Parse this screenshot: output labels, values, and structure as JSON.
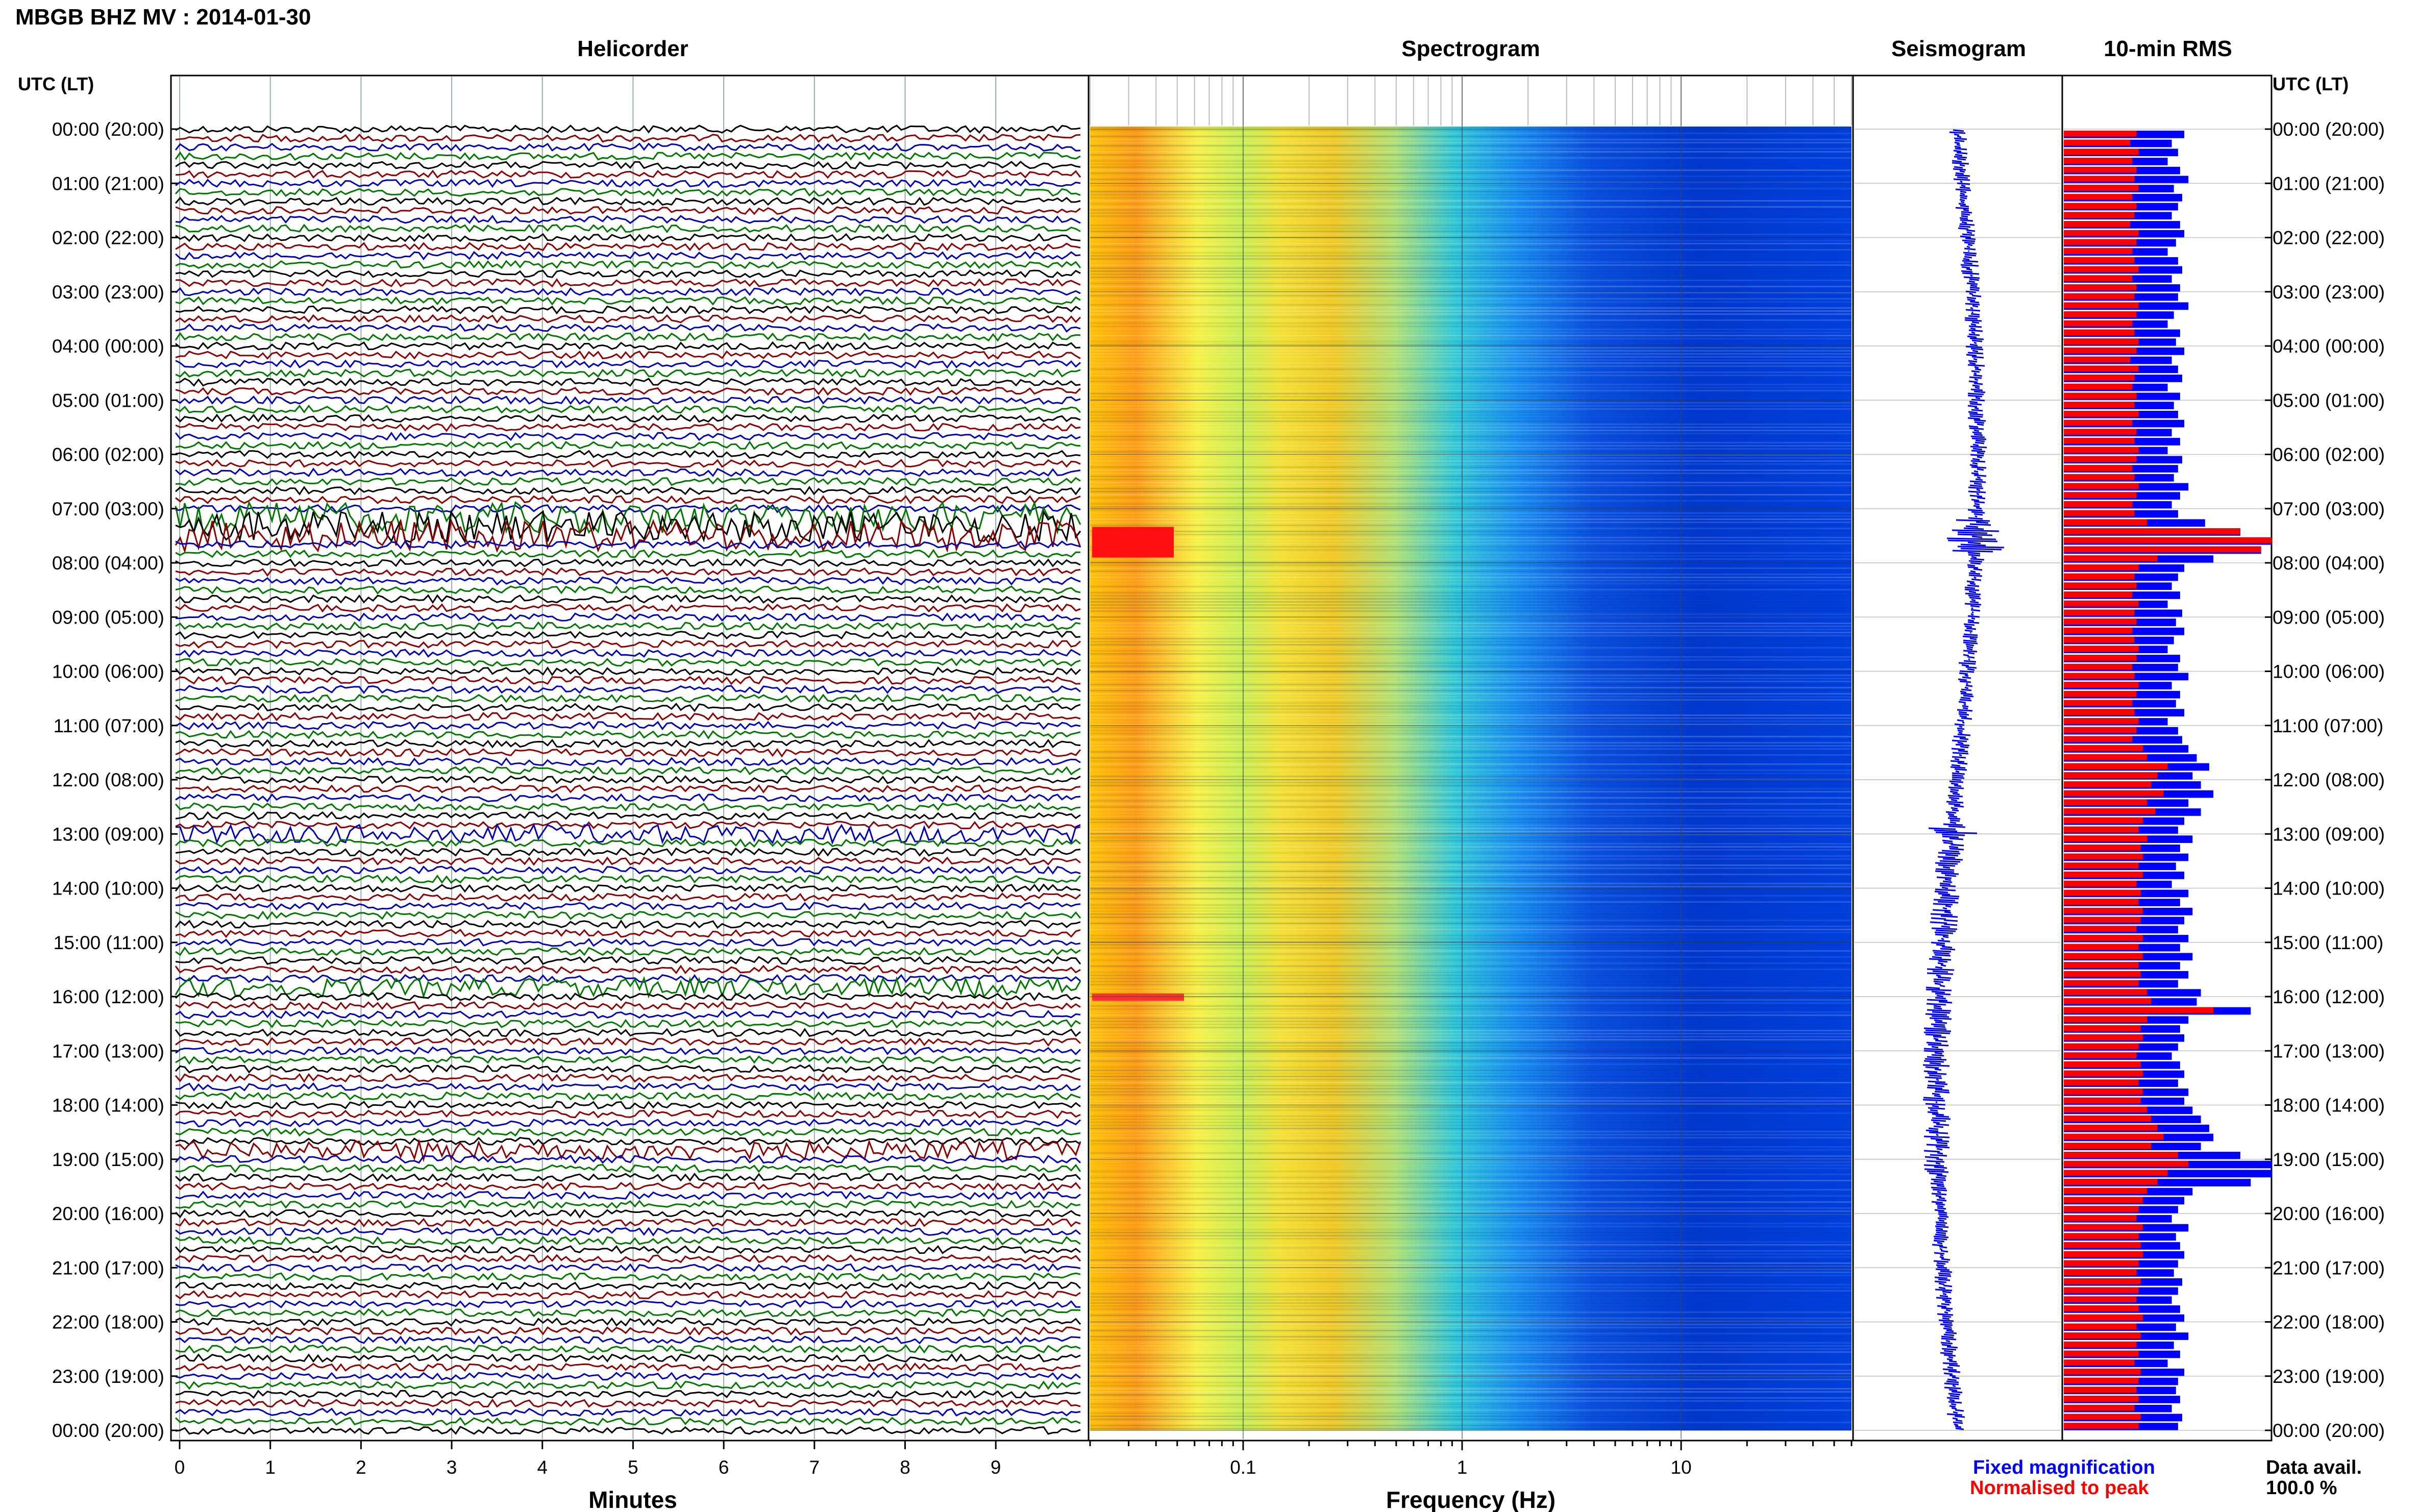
{
  "figure": {
    "station_title": "MBGB BHZ MV : 2014-01-30",
    "utc_lt_label": "UTC (LT)",
    "footer_fixed": "Fixed magnification",
    "footer_normalised": "Normalised to peak",
    "data_avail_label": "Data avail.",
    "data_avail_value": "100.0 %",
    "colors": {
      "trace_cycle": [
        "#000000",
        "#8b0000",
        "#0000b4",
        "#007800"
      ],
      "fixed": "#0000ff",
      "normalised": "#ff0000"
    }
  },
  "chart_data": [
    {
      "type": "line",
      "title": "Helicorder",
      "xlabel": "Minutes",
      "x_ticks": [
        "0",
        "1",
        "2",
        "3",
        "4",
        "5",
        "6",
        "7",
        "8",
        "9"
      ],
      "xlim": [
        0,
        10
      ],
      "y_ticks": [
        "00:00 (20:00)",
        "01:00 (21:00)",
        "02:00 (22:00)",
        "03:00 (23:00)",
        "04:00 (00:00)",
        "05:00 (01:00)",
        "06:00 (02:00)",
        "07:00 (03:00)",
        "08:00 (04:00)",
        "09:00 (05:00)",
        "10:00 (06:00)",
        "11:00 (07:00)",
        "12:00 (08:00)",
        "13:00 (09:00)",
        "14:00 (10:00)",
        "15:00 (11:00)",
        "16:00 (12:00)",
        "17:00 (13:00)",
        "18:00 (14:00)",
        "19:00 (15:00)",
        "20:00 (16:00)",
        "21:00 (17:00)",
        "22:00 (18:00)",
        "23:00 (19:00)",
        "00:00 (20:00)"
      ],
      "lines_per_hour": 6,
      "high_amplitude_hours": [
        7.3,
        7.5,
        13.0,
        15.8,
        18.9
      ]
    },
    {
      "type": "heatmap",
      "title": "Spectrogram",
      "xlabel": "Frequency (Hz)",
      "x_ticks": [
        "0.1",
        "1",
        "10"
      ],
      "xscale": "log",
      "xlim": [
        0.02,
        60
      ]
    },
    {
      "type": "line",
      "title": "Seismogram"
    },
    {
      "type": "bar",
      "title": "10-min RMS",
      "series": [
        {
          "name": "Fixed magnification",
          "values": [
            0.58,
            0.52,
            0.55,
            0.5,
            0.56,
            0.6,
            0.53,
            0.57,
            0.55,
            0.52,
            0.56,
            0.58,
            0.54,
            0.5,
            0.55,
            0.57,
            0.52,
            0.56,
            0.55,
            0.6,
            0.53,
            0.5,
            0.56,
            0.54,
            0.58,
            0.52,
            0.55,
            0.57,
            0.5,
            0.56,
            0.53,
            0.55,
            0.58,
            0.52,
            0.56,
            0.5,
            0.57,
            0.55,
            0.53,
            0.6,
            0.56,
            0.52,
            0.55,
            0.68,
            0.85,
            1.0,
            0.95,
            0.72,
            0.58,
            0.55,
            0.52,
            0.56,
            0.5,
            0.57,
            0.54,
            0.58,
            0.53,
            0.5,
            0.56,
            0.55,
            0.6,
            0.52,
            0.56,
            0.54,
            0.58,
            0.5,
            0.55,
            0.57,
            0.6,
            0.64,
            0.7,
            0.62,
            0.66,
            0.72,
            0.6,
            0.66,
            0.58,
            0.55,
            0.62,
            0.56,
            0.6,
            0.54,
            0.58,
            0.52,
            0.6,
            0.56,
            0.62,
            0.58,
            0.55,
            0.6,
            0.56,
            0.62,
            0.56,
            0.6,
            0.55,
            0.66,
            0.64,
            0.9,
            0.6,
            0.56,
            0.58,
            0.55,
            0.52,
            0.56,
            0.58,
            0.55,
            0.6,
            0.58,
            0.62,
            0.66,
            0.7,
            0.72,
            0.66,
            0.85,
            1.0,
            1.0,
            0.9,
            0.62,
            0.58,
            0.55,
            0.52,
            0.6,
            0.54,
            0.56,
            0.58,
            0.55,
            0.53,
            0.57,
            0.55,
            0.52,
            0.56,
            0.58,
            0.54,
            0.6,
            0.53,
            0.56,
            0.5,
            0.58,
            0.55,
            0.54,
            0.56,
            0.52,
            0.57,
            0.55
          ]
        },
        {
          "name": "Normalised to peak",
          "values": [
            0.35,
            0.32,
            0.36,
            0.33,
            0.35,
            0.34,
            0.36,
            0.33,
            0.35,
            0.34,
            0.32,
            0.36,
            0.35,
            0.33,
            0.34,
            0.36,
            0.33,
            0.35,
            0.34,
            0.36,
            0.35,
            0.33,
            0.34,
            0.36,
            0.35,
            0.32,
            0.36,
            0.34,
            0.33,
            0.35,
            0.34,
            0.36,
            0.33,
            0.35,
            0.34,
            0.36,
            0.35,
            0.33,
            0.34,
            0.36,
            0.35,
            0.33,
            0.34,
            0.4,
            0.85,
            1.0,
            0.95,
            0.45,
            0.36,
            0.34,
            0.35,
            0.33,
            0.36,
            0.34,
            0.35,
            0.33,
            0.34,
            0.36,
            0.35,
            0.33,
            0.34,
            0.36,
            0.35,
            0.33,
            0.34,
            0.36,
            0.35,
            0.33,
            0.38,
            0.4,
            0.5,
            0.45,
            0.42,
            0.48,
            0.4,
            0.44,
            0.38,
            0.36,
            0.4,
            0.37,
            0.38,
            0.36,
            0.38,
            0.35,
            0.37,
            0.36,
            0.38,
            0.37,
            0.35,
            0.38,
            0.36,
            0.38,
            0.36,
            0.37,
            0.36,
            0.4,
            0.42,
            0.72,
            0.4,
            0.37,
            0.38,
            0.36,
            0.35,
            0.37,
            0.38,
            0.36,
            0.38,
            0.37,
            0.4,
            0.42,
            0.45,
            0.48,
            0.42,
            0.55,
            0.6,
            0.5,
            0.45,
            0.4,
            0.38,
            0.36,
            0.35,
            0.38,
            0.36,
            0.37,
            0.38,
            0.36,
            0.35,
            0.37,
            0.36,
            0.35,
            0.36,
            0.38,
            0.35,
            0.37,
            0.35,
            0.36,
            0.34,
            0.37,
            0.36,
            0.35,
            0.36,
            0.34,
            0.37,
            0.36
          ]
        }
      ]
    }
  ]
}
